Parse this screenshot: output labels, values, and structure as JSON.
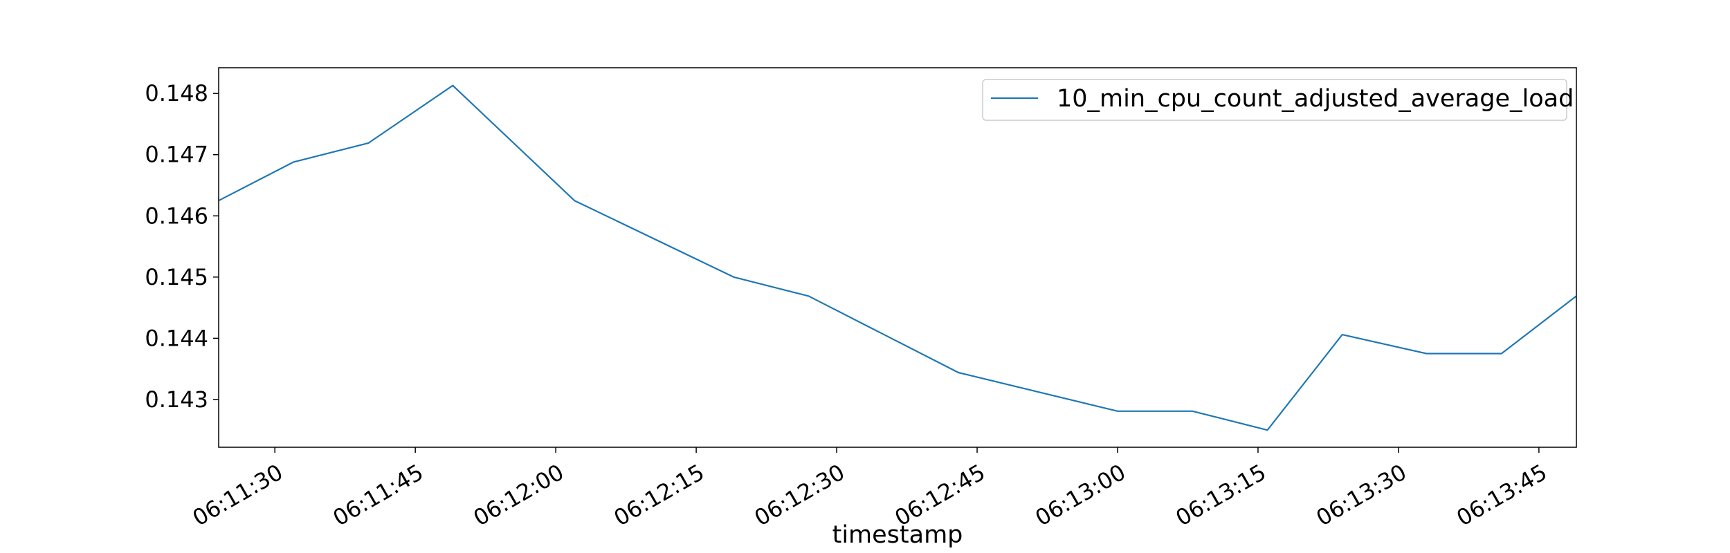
{
  "chart_data": {
    "type": "line",
    "title": "",
    "xlabel": "timestamp",
    "ylabel": "",
    "x_start": "06:11:24",
    "x_end": "06:13:49",
    "ylim": [
      0.14222,
      0.14842
    ],
    "x_ticks": [
      "06:11:30",
      "06:11:45",
      "06:12:00",
      "06:12:15",
      "06:12:30",
      "06:12:45",
      "06:13:00",
      "06:13:15",
      "06:13:30",
      "06:13:45"
    ],
    "y_ticks": [
      0.143,
      0.144,
      0.145,
      0.146,
      0.147,
      0.148
    ],
    "y_tick_labels": [
      "0.143",
      "0.144",
      "0.145",
      "0.146",
      "0.147",
      "0.148"
    ],
    "grid": false,
    "legend_position": "top-right",
    "series": [
      {
        "name": "10_min_cpu_count_adjusted_average_load",
        "color": "#1f77b4",
        "points": [
          [
            "06:11:24",
            0.14625
          ],
          [
            "06:11:32",
            0.14688
          ],
          [
            "06:11:40",
            0.14719
          ],
          [
            "06:11:49",
            0.14813
          ],
          [
            "06:12:02",
            0.14625
          ],
          [
            "06:12:19",
            0.145
          ],
          [
            "06:12:27",
            0.14469
          ],
          [
            "06:12:43",
            0.14344
          ],
          [
            "06:13:00",
            0.14281
          ],
          [
            "06:13:08",
            0.14281
          ],
          [
            "06:13:16",
            0.1425
          ],
          [
            "06:13:24",
            0.14406
          ],
          [
            "06:13:33",
            0.14375
          ],
          [
            "06:13:41",
            0.14375
          ],
          [
            "06:13:49",
            0.14469
          ]
        ]
      }
    ]
  }
}
